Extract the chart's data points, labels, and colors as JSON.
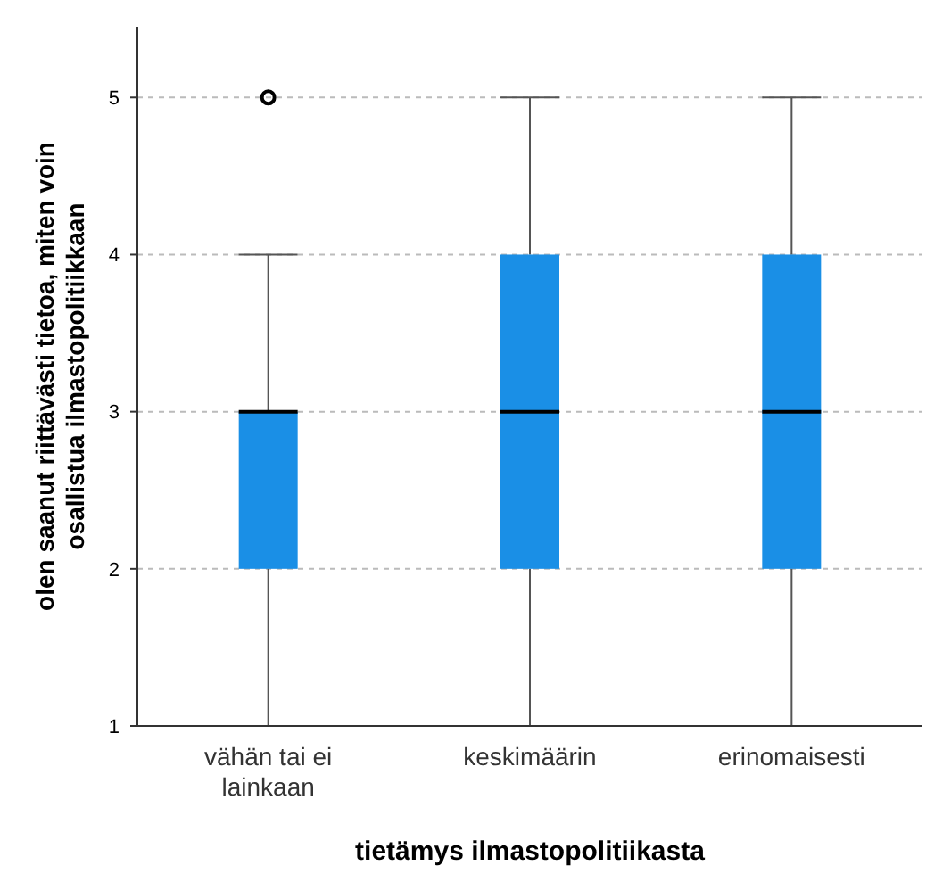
{
  "chart_data": {
    "type": "box",
    "categories": [
      "vähän tai ei lainkaan",
      "keskimäärin",
      "erinomaisesti"
    ],
    "boxes": [
      {
        "low": 1,
        "q1": 2,
        "median": 3,
        "q3": 3,
        "high": 4,
        "outliers": [
          5
        ]
      },
      {
        "low": 1,
        "q1": 2,
        "median": 3,
        "q3": 4,
        "high": 5
      },
      {
        "low": 1,
        "q1": 2,
        "median": 3,
        "q3": 4,
        "high": 5
      }
    ],
    "color": "#1a8fe6",
    "ylim": [
      1,
      5.45
    ],
    "yticks": [
      1,
      2,
      3,
      4,
      5
    ],
    "grid": "y",
    "xlabel": "tietämys ilmastopolitiikasta",
    "ylabel": "olen saanut riittävästi tietoa, miten voin osallistua ilmastopolitiikkaan"
  }
}
